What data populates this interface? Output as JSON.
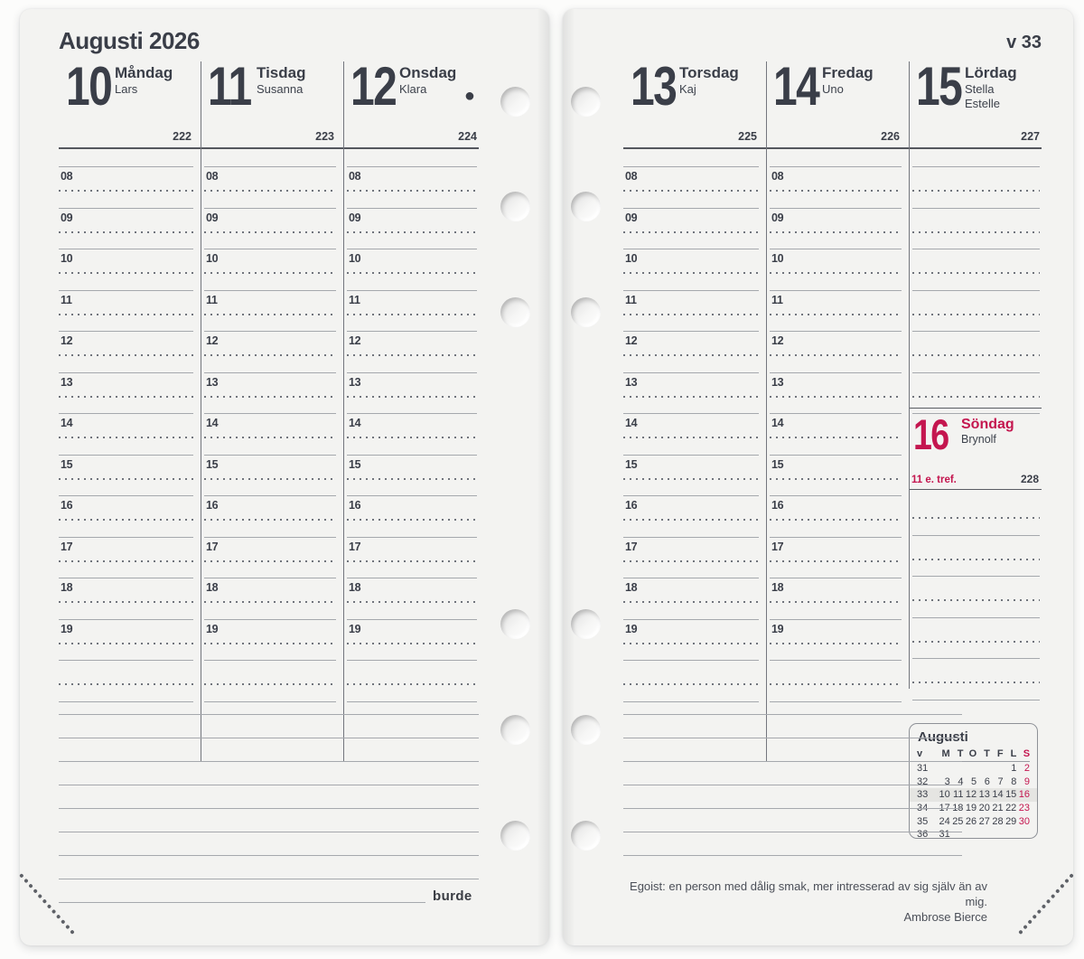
{
  "colors": {
    "accent_red": "#c4164f",
    "ink": "#3a3e48"
  },
  "left_page": {
    "month_title": "Augusti 2026",
    "days": [
      {
        "number": "10",
        "name": "Måndag",
        "name_days": [
          "Lars"
        ],
        "day_of_year": "222"
      },
      {
        "number": "11",
        "name": "Tisdag",
        "name_days": [
          "Susanna"
        ],
        "day_of_year": "223"
      },
      {
        "number": "12",
        "name": "Onsdag",
        "name_days": [
          "Klara"
        ],
        "day_of_year": "224",
        "moon_symbol": "●"
      }
    ],
    "hours": [
      "08",
      "09",
      "10",
      "11",
      "12",
      "13",
      "14",
      "15",
      "16",
      "17",
      "18",
      "19"
    ],
    "brand": "burde"
  },
  "right_page": {
    "week_label": "v 33",
    "days": [
      {
        "number": "13",
        "name": "Torsdag",
        "name_days": [
          "Kaj"
        ],
        "day_of_year": "225"
      },
      {
        "number": "14",
        "name": "Fredag",
        "name_days": [
          "Uno"
        ],
        "day_of_year": "226"
      },
      {
        "number": "15",
        "name": "Lördag",
        "name_days": [
          "Stella",
          "Estelle"
        ],
        "day_of_year": "227"
      }
    ],
    "hours": [
      "08",
      "09",
      "10",
      "11",
      "12",
      "13",
      "14",
      "15",
      "16",
      "17",
      "18",
      "19"
    ],
    "sunday": {
      "number": "16",
      "name": "Söndag",
      "name_days": [
        "Brynolf"
      ],
      "church_day": "11 e. tref.",
      "day_of_year": "228"
    },
    "mini_calendar": {
      "title": "Augusti",
      "day_headers": [
        "v",
        "M",
        "T",
        "O",
        "T",
        "F",
        "L",
        "S"
      ],
      "weeks": [
        {
          "week": "31",
          "days": [
            "",
            "",
            "",
            "",
            "",
            "1",
            "2"
          ],
          "current": false
        },
        {
          "week": "32",
          "days": [
            "3",
            "4",
            "5",
            "6",
            "7",
            "8",
            "9"
          ],
          "current": false
        },
        {
          "week": "33",
          "days": [
            "10",
            "11",
            "12",
            "13",
            "14",
            "15",
            "16"
          ],
          "current": true
        },
        {
          "week": "34",
          "days": [
            "17",
            "18",
            "19",
            "20",
            "21",
            "22",
            "23"
          ],
          "current": false
        },
        {
          "week": "35",
          "days": [
            "24",
            "25",
            "26",
            "27",
            "28",
            "29",
            "30"
          ],
          "current": false
        },
        {
          "week": "36",
          "days": [
            "31",
            "",
            "",
            "",
            "",
            "",
            ""
          ],
          "current": false
        }
      ]
    },
    "quote": {
      "text": "Egoist: en person med dålig smak, mer intresserad av sig själv än av mig.",
      "author": "Ambrose Bierce"
    }
  }
}
